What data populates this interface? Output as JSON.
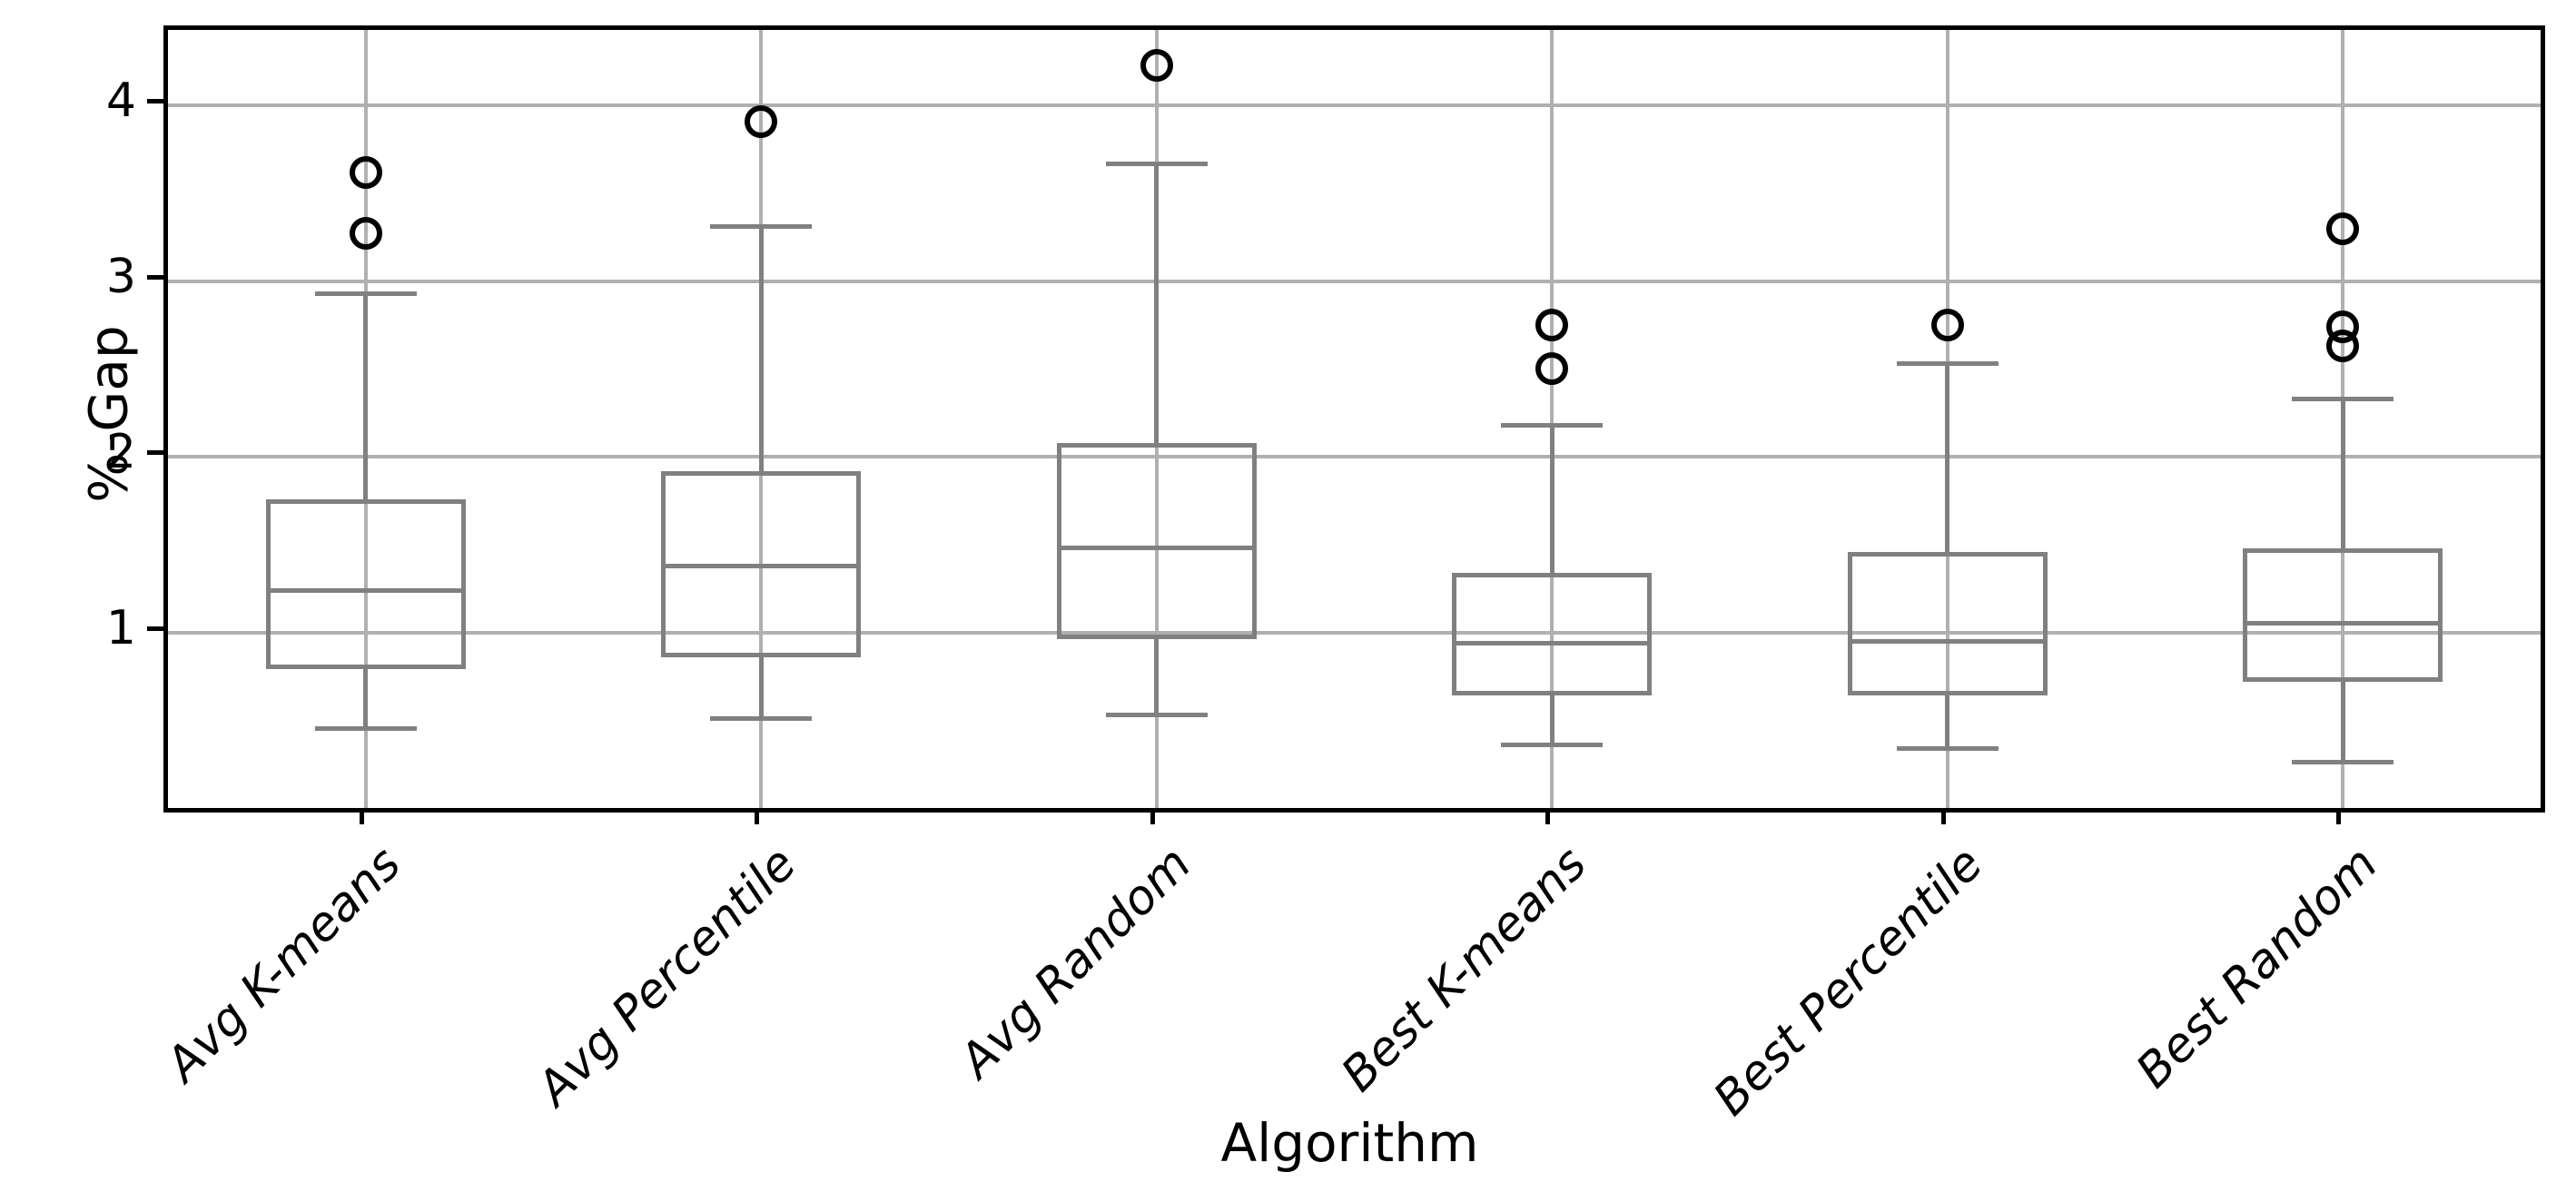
{
  "chart_data": {
    "type": "boxplot",
    "xlabel": "Algorithm",
    "ylabel": "%-Gap",
    "categories": [
      "Avg K-means",
      "Avg Percentile",
      "Avg Random",
      "Best K-means",
      "Best Percentile",
      "Best Random"
    ],
    "boxes": [
      {
        "label": "Avg K-means",
        "whislo": 0.45,
        "q1": 0.79,
        "med": 1.24,
        "q3": 1.76,
        "whishi": 2.93,
        "fliers": [
          3.27,
          3.62
        ]
      },
      {
        "label": "Avg Percentile",
        "whislo": 0.51,
        "q1": 0.86,
        "med": 1.38,
        "q3": 1.92,
        "whishi": 3.31,
        "fliers": [
          3.91
        ]
      },
      {
        "label": "Avg Random",
        "whislo": 0.53,
        "q1": 0.96,
        "med": 1.48,
        "q3": 2.08,
        "whishi": 3.67,
        "fliers": [
          4.23
        ]
      },
      {
        "label": "Best K-means",
        "whislo": 0.36,
        "q1": 0.64,
        "med": 0.94,
        "q3": 1.34,
        "whishi": 2.18,
        "fliers": [
          2.5,
          2.75
        ]
      },
      {
        "label": "Best Percentile",
        "whislo": 0.34,
        "q1": 0.64,
        "med": 0.95,
        "q3": 1.46,
        "whishi": 2.53,
        "fliers": [
          2.75
        ]
      },
      {
        "label": "Best Random",
        "whislo": 0.26,
        "q1": 0.72,
        "med": 1.05,
        "q3": 1.48,
        "whishi": 2.33,
        "fliers": [
          2.63,
          2.74,
          3.3
        ]
      }
    ],
    "yticks": [
      1,
      2,
      3,
      4
    ],
    "ylim": [
      0.0,
      4.43
    ],
    "grid": true,
    "legend": "none",
    "colors": {
      "box": "#808080",
      "median": "#808080",
      "whisker": "#808080",
      "flier_edge": "#000000",
      "grid": "#b0b0b0",
      "spine": "#000000",
      "background": "#ffffff"
    }
  }
}
